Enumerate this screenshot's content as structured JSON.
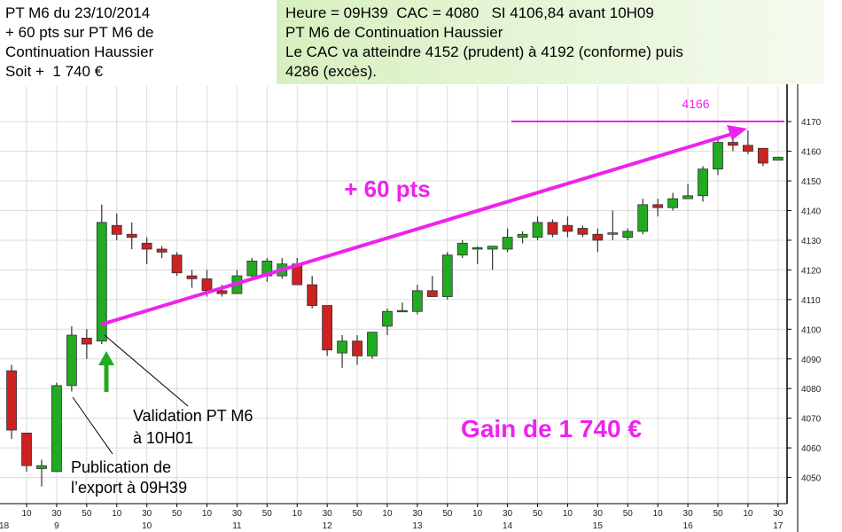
{
  "chart_data": {
    "type": "candlestick",
    "x": [
      0,
      1,
      2,
      3,
      4,
      5,
      6,
      7,
      8,
      9,
      10,
      11,
      12,
      13,
      14,
      15,
      16,
      17,
      18,
      19,
      20,
      21,
      22,
      23,
      24,
      25,
      26,
      27,
      28,
      29,
      30,
      31,
      32,
      33,
      34,
      35,
      36,
      37,
      38,
      39,
      40,
      41,
      42,
      43,
      44,
      45,
      46,
      47,
      48,
      49,
      50,
      51
    ],
    "open": [
      4086,
      4065,
      4053,
      4052,
      4081,
      4097,
      4096,
      4135,
      4132,
      4129,
      4127,
      4125,
      4118,
      4117,
      4113,
      4112,
      4118,
      4118,
      4118,
      4122,
      4115,
      4108,
      4092,
      4096,
      4091,
      4101,
      4106,
      4106,
      4113,
      4111,
      4125,
      4127,
      4127,
      4127,
      4131,
      4131,
      4136,
      4135,
      4134,
      4132,
      4132,
      4131,
      4133,
      4142,
      4141,
      4144,
      4145,
      4154,
      4163,
      4162,
      4161,
      4157
    ],
    "high": [
      4088,
      4065,
      4056,
      4082,
      4101,
      4100,
      4142,
      4139,
      4136,
      4131,
      4128,
      4126,
      4120,
      4120,
      4115,
      4120,
      4124,
      4124,
      4124,
      4124,
      4118,
      4108,
      4098,
      4098,
      4099,
      4107,
      4109,
      4115,
      4118,
      4126,
      4130,
      4128,
      4128,
      4134,
      4133,
      4138,
      4137,
      4138,
      4135,
      4134,
      4140,
      4134,
      4144,
      4144,
      4146,
      4149,
      4155,
      4165,
      4165,
      4167,
      4161,
      4158
    ],
    "low": [
      4063,
      4052,
      4047,
      4052,
      4079,
      4090,
      4095,
      4130,
      4127,
      4122,
      4124,
      4118,
      4114,
      4111,
      4111,
      4112,
      4117,
      4116,
      4117,
      4115,
      4107,
      4091,
      4087,
      4088,
      4090,
      4098,
      4106,
      4105,
      4111,
      4110,
      4124,
      4122,
      4120,
      4126,
      4129,
      4130,
      4131,
      4131,
      4131,
      4126,
      4130,
      4130,
      4132,
      4138,
      4140,
      4144,
      4143,
      4152,
      4160,
      4159,
      4155,
      4157
    ],
    "close": [
      4066,
      4054,
      4054,
      4081,
      4098,
      4095,
      4136,
      4132,
      4131,
      4127,
      4126,
      4119,
      4117,
      4113,
      4112,
      4118,
      4123,
      4123,
      4122,
      4115,
      4108,
      4093,
      4096,
      4091,
      4099,
      4106,
      4106.3,
      4113,
      4111,
      4125,
      4129,
      4127.5,
      4128,
      4131,
      4132,
      4136,
      4132,
      4133,
      4132,
      4130,
      4132.5,
      4133,
      4142,
      4141,
      4144,
      4145,
      4154,
      4163,
      4162,
      4160,
      4156,
      4158
    ],
    "up_color": "#22aa22",
    "down_color": "#cc2222",
    "xlim": [
      -0.77,
      51.6
    ],
    "ylim": [
      4041.2,
      4182
    ],
    "yticks": [
      4050,
      4060,
      4070,
      4080,
      4090,
      4100,
      4110,
      4120,
      4130,
      4140,
      4150,
      4160,
      4170
    ],
    "xticks": [
      {
        "value": 1,
        "label": "10"
      },
      {
        "value": 3,
        "label": "30"
      },
      {
        "value": 5,
        "label": "50"
      },
      {
        "value": 7,
        "label": "10"
      },
      {
        "value": 9,
        "label": "30"
      },
      {
        "value": 11,
        "label": "50"
      },
      {
        "value": 13,
        "label": "10"
      },
      {
        "value": 15,
        "label": "30"
      },
      {
        "value": 17,
        "label": "50"
      },
      {
        "value": 19,
        "label": "10"
      },
      {
        "value": 21,
        "label": "30"
      },
      {
        "value": 23,
        "label": "50"
      },
      {
        "value": 25,
        "label": "10"
      },
      {
        "value": 27,
        "label": "30"
      },
      {
        "value": 29,
        "label": "50"
      },
      {
        "value": 31,
        "label": "10"
      },
      {
        "value": 33,
        "label": "30"
      },
      {
        "value": 35,
        "label": "50"
      },
      {
        "value": 37,
        "label": "10"
      },
      {
        "value": 39,
        "label": "30"
      },
      {
        "value": 41,
        "label": "50"
      },
      {
        "value": 43,
        "label": "10"
      },
      {
        "value": 45,
        "label": "30"
      },
      {
        "value": 47,
        "label": "50"
      },
      {
        "value": 49,
        "label": "10"
      },
      {
        "value": 51,
        "label": "30"
      }
    ],
    "xticks_major": [
      {
        "value": -0.5,
        "label": "18"
      },
      {
        "value": 3,
        "label": "9"
      },
      {
        "value": 9,
        "label": "10"
      },
      {
        "value": 15,
        "label": "11"
      },
      {
        "value": 21,
        "label": "12"
      },
      {
        "value": 27,
        "label": "13"
      },
      {
        "value": 33,
        "label": "14"
      },
      {
        "value": 39,
        "label": "15"
      },
      {
        "value": 45,
        "label": "16"
      },
      {
        "value": 51,
        "label": "17"
      }
    ],
    "grid": true,
    "annotations": {
      "header_left": [
        "PT M6 du 23/10/2014",
        "+ 60 pts sur PT M6 de",
        "Continuation Haussier",
        "Soit +  1 740 €"
      ],
      "header_right": [
        "Heure = 09H39  CAC = 4080   SI 4106,84 avant 10H09",
        "PT M6 de Continuation Haussier",
        "Le CAC va atteindre 4152 (prudent) à 4192 (conforme) puis",
        "4286 (excès)."
      ],
      "target_label": "4166",
      "gain_pts": "+ 60 pts",
      "gain_eur": "Gain de 1 740 €",
      "validation": [
        "Validation PT M6",
        "à 10H01"
      ],
      "publication": [
        "Publication de",
        "l’export à 09H39"
      ]
    }
  }
}
